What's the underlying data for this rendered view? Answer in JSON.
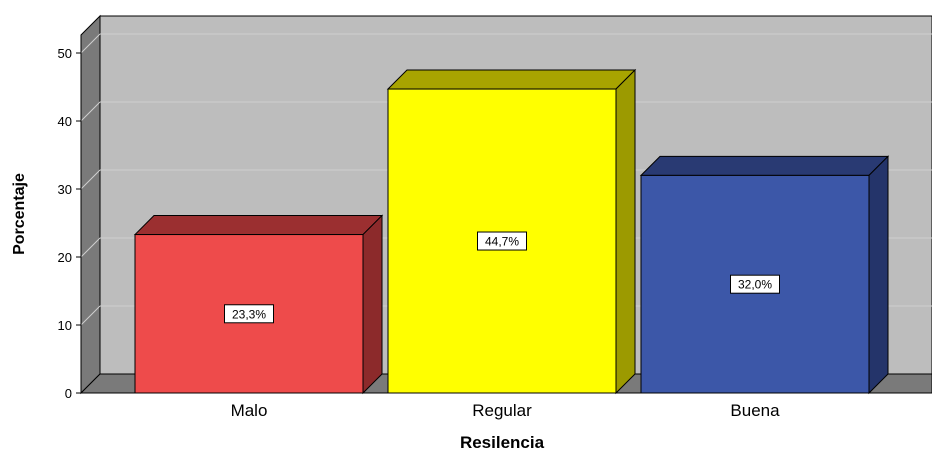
{
  "chart_data": {
    "type": "bar",
    "style": "3d",
    "xlabel": "Resilencia",
    "ylabel": "Porcentaje",
    "ylim": [
      0,
      50
    ],
    "yticks": [
      0,
      10,
      20,
      30,
      40,
      50
    ],
    "grid": true,
    "categories": [
      "Malo",
      "Regular",
      "Buena"
    ],
    "values": [
      23.3,
      44.7,
      32.0
    ],
    "data_labels": [
      "23,3%",
      "44,7%",
      "32,0%"
    ],
    "colors": [
      "#ee4b4b",
      "#ffff00",
      "#3c57a8"
    ],
    "side_colors": [
      "#8c2a2b",
      "#9c9a00",
      "#24346a"
    ],
    "top_colors": [
      "#9b2f30",
      "#a8a400",
      "#293a73"
    ],
    "wall_color": "#bdbdbd",
    "floor_color": "#7a7a7a"
  }
}
